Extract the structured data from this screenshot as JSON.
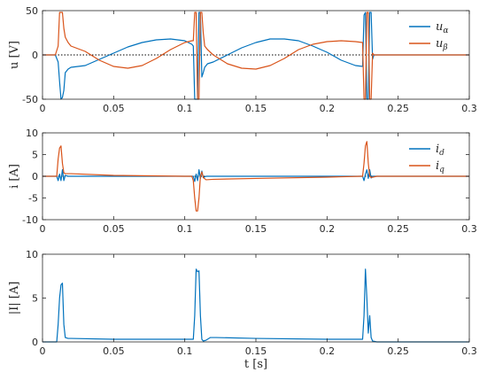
{
  "chart_data": [
    {
      "type": "line",
      "ylabel": "u [V]",
      "xlabel": "",
      "xlim": [
        0,
        0.3
      ],
      "ylim": [
        -50,
        50
      ],
      "xticks": [
        "0",
        "0.05",
        "0.1",
        "0.15",
        "0.2",
        "0.25",
        "0.3"
      ],
      "yticks": [
        "-50",
        "0",
        "50"
      ],
      "grid": false,
      "zero_line": "dotted",
      "legend": "top-right",
      "series": [
        {
          "name": "u_α",
          "color": "#0072BD",
          "x": [
            0,
            0.009,
            0.01,
            0.011,
            0.012,
            0.013,
            0.014,
            0.015,
            0.016,
            0.018,
            0.02,
            0.03,
            0.04,
            0.05,
            0.06,
            0.07,
            0.08,
            0.09,
            0.1,
            0.105,
            0.106,
            0.107,
            0.108,
            0.109,
            0.11,
            0.111,
            0.112,
            0.113,
            0.114,
            0.116,
            0.12,
            0.13,
            0.14,
            0.15,
            0.16,
            0.17,
            0.18,
            0.19,
            0.2,
            0.21,
            0.22,
            0.225,
            0.226,
            0.227,
            0.228,
            0.229,
            0.23,
            0.231,
            0.232,
            0.233,
            0.235,
            0.24,
            0.25,
            0.3
          ],
          "y": [
            0,
            0,
            -4,
            -8,
            -30,
            -50,
            -48,
            -40,
            -20,
            -16,
            -14,
            -12,
            -5,
            2,
            9,
            14,
            17,
            18,
            16,
            12,
            10,
            -50,
            -50,
            -50,
            48,
            48,
            -25,
            -20,
            -14,
            -10,
            -8,
            0,
            8,
            14,
            18,
            18,
            16,
            10,
            3,
            -6,
            -12,
            -13,
            45,
            48,
            -50,
            -50,
            48,
            48,
            -5,
            0,
            0,
            0,
            0,
            0
          ]
        },
        {
          "name": "u_β",
          "color": "#D95319",
          "x": [
            0,
            0.009,
            0.01,
            0.011,
            0.012,
            0.013,
            0.014,
            0.015,
            0.016,
            0.018,
            0.02,
            0.03,
            0.04,
            0.05,
            0.06,
            0.07,
            0.08,
            0.09,
            0.1,
            0.105,
            0.106,
            0.107,
            0.108,
            0.109,
            0.11,
            0.111,
            0.112,
            0.113,
            0.114,
            0.116,
            0.12,
            0.13,
            0.14,
            0.15,
            0.16,
            0.17,
            0.18,
            0.19,
            0.2,
            0.21,
            0.22,
            0.225,
            0.226,
            0.227,
            0.228,
            0.229,
            0.23,
            0.231,
            0.232,
            0.233,
            0.235,
            0.24,
            0.25,
            0.3
          ],
          "y": [
            0,
            0,
            5,
            10,
            48,
            48,
            48,
            30,
            20,
            14,
            10,
            4,
            -6,
            -13,
            -15,
            -12,
            -4,
            6,
            14,
            16,
            16,
            48,
            48,
            -50,
            -50,
            48,
            48,
            25,
            10,
            6,
            0,
            -10,
            -15,
            -16,
            -12,
            -4,
            6,
            12,
            15,
            16,
            15,
            14,
            -50,
            -50,
            48,
            48,
            -50,
            -50,
            2,
            0,
            0,
            0,
            0,
            0
          ]
        }
      ]
    },
    {
      "type": "line",
      "ylabel": "i [A]",
      "xlabel": "",
      "xlim": [
        0,
        0.3
      ],
      "ylim": [
        -10,
        10
      ],
      "xticks": [
        "0",
        "0.05",
        "0.1",
        "0.15",
        "0.2",
        "0.25",
        "0.3"
      ],
      "yticks": [
        "-10",
        "-5",
        "0",
        "5",
        "10"
      ],
      "grid": false,
      "zero_line": "dotted",
      "legend": "top-right",
      "series": [
        {
          "name": "i_d",
          "color": "#0072BD",
          "x": [
            0,
            0.01,
            0.011,
            0.012,
            0.013,
            0.014,
            0.015,
            0.016,
            0.018,
            0.1,
            0.106,
            0.107,
            0.108,
            0.109,
            0.11,
            0.111,
            0.112,
            0.113,
            0.115,
            0.12,
            0.225,
            0.226,
            0.227,
            0.228,
            0.229,
            0.23,
            0.231,
            0.232,
            0.24,
            0.3
          ],
          "y": [
            0,
            0,
            -1,
            0.5,
            -1,
            1.5,
            -1,
            0.2,
            0,
            0,
            0,
            -1.2,
            0.5,
            -1,
            1.5,
            -0.5,
            1.2,
            -0.3,
            0,
            0,
            0,
            -1,
            0.5,
            1.5,
            -0.5,
            1.5,
            -0.4,
            0,
            0,
            0
          ]
        },
        {
          "name": "i_q",
          "color": "#D95319",
          "x": [
            0,
            0.01,
            0.011,
            0.012,
            0.013,
            0.014,
            0.015,
            0.016,
            0.02,
            0.05,
            0.1,
            0.105,
            0.106,
            0.107,
            0.108,
            0.109,
            0.11,
            0.111,
            0.112,
            0.113,
            0.115,
            0.12,
            0.15,
            0.2,
            0.224,
            0.225,
            0.226,
            0.227,
            0.228,
            0.229,
            0.23,
            0.231,
            0.235,
            0.3
          ],
          "y": [
            0,
            0,
            4,
            6.5,
            7,
            3,
            0.8,
            0.6,
            0.6,
            0.2,
            0,
            0,
            -1,
            -5,
            -8,
            -8,
            -5,
            0,
            1,
            -0.3,
            -0.8,
            -0.7,
            -0.5,
            -0.2,
            0,
            0,
            3,
            7,
            8,
            3,
            0,
            -0.3,
            0,
            0
          ]
        }
      ]
    },
    {
      "type": "line",
      "ylabel": "|I| [A]",
      "xlabel": "t [s]",
      "xlim": [
        0,
        0.3
      ],
      "ylim": [
        0,
        10
      ],
      "xticks": [
        "0",
        "0.05",
        "0.1",
        "0.15",
        "0.2",
        "0.25",
        "0.3"
      ],
      "yticks": [
        "0",
        "5",
        "10"
      ],
      "grid": false,
      "legend": "none",
      "series": [
        {
          "name": "",
          "color": "#0072BD",
          "x": [
            0,
            0.01,
            0.011,
            0.012,
            0.013,
            0.014,
            0.015,
            0.016,
            0.018,
            0.02,
            0.05,
            0.1,
            0.106,
            0.107,
            0.108,
            0.109,
            0.11,
            0.111,
            0.112,
            0.113,
            0.115,
            0.118,
            0.122,
            0.15,
            0.2,
            0.224,
            0.225,
            0.226,
            0.227,
            0.228,
            0.229,
            0.23,
            0.231,
            0.232,
            0.235,
            0.3
          ],
          "y": [
            0,
            0,
            2,
            5,
            6.5,
            6.7,
            2,
            0.5,
            0.4,
            0.4,
            0.3,
            0.3,
            0.3,
            3,
            8.3,
            8,
            8.1,
            3,
            0.3,
            0.1,
            0.2,
            0.5,
            0.5,
            0.4,
            0.3,
            0.3,
            0.3,
            3,
            8.3,
            5,
            1,
            3,
            0.5,
            0.1,
            0,
            0
          ]
        }
      ]
    }
  ]
}
